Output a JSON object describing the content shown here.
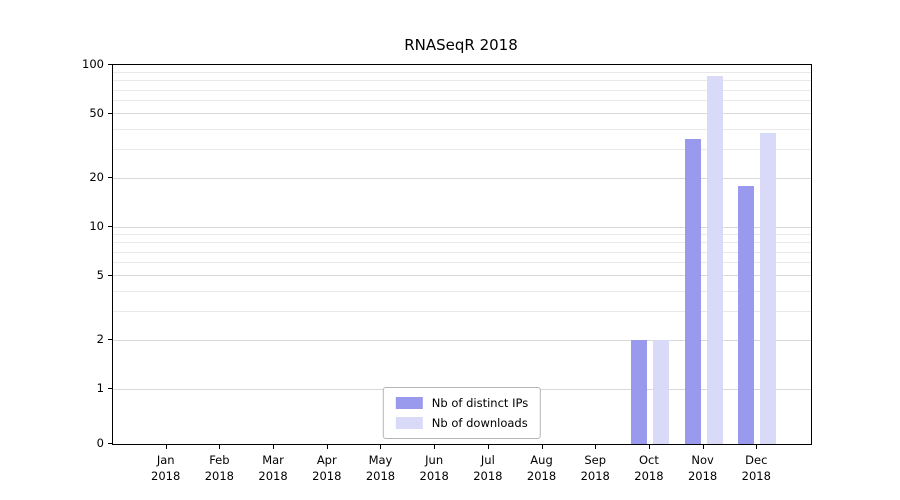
{
  "chart_data": {
    "type": "bar",
    "title": "RNASeqR 2018",
    "categories": [
      "Jan 2018",
      "Feb 2018",
      "Mar 2018",
      "Apr 2018",
      "May 2018",
      "Jun 2018",
      "Jul 2018",
      "Aug 2018",
      "Sep 2018",
      "Oct 2018",
      "Nov 2018",
      "Dec 2018"
    ],
    "series": [
      {
        "name": "Nb of distinct IPs",
        "color": "#9999ed",
        "values": [
          0,
          0,
          0,
          0,
          0,
          0,
          0,
          0,
          0,
          2,
          35,
          18
        ]
      },
      {
        "name": "Nb of downloads",
        "color": "#d9d9f8",
        "values": [
          0,
          0,
          0,
          0,
          0,
          0,
          0,
          0,
          0,
          2,
          85,
          38
        ]
      }
    ],
    "yscale": "symlog",
    "ylim": [
      0,
      100
    ],
    "yticks": [
      0,
      1,
      2,
      5,
      10,
      20,
      50,
      100
    ],
    "minor_gridlines": [
      3,
      4,
      6,
      7,
      8,
      9,
      30,
      40,
      60,
      70,
      80,
      90
    ],
    "grid": "horizontal",
    "legend_position": "lower center",
    "xlabel": "",
    "ylabel": ""
  }
}
